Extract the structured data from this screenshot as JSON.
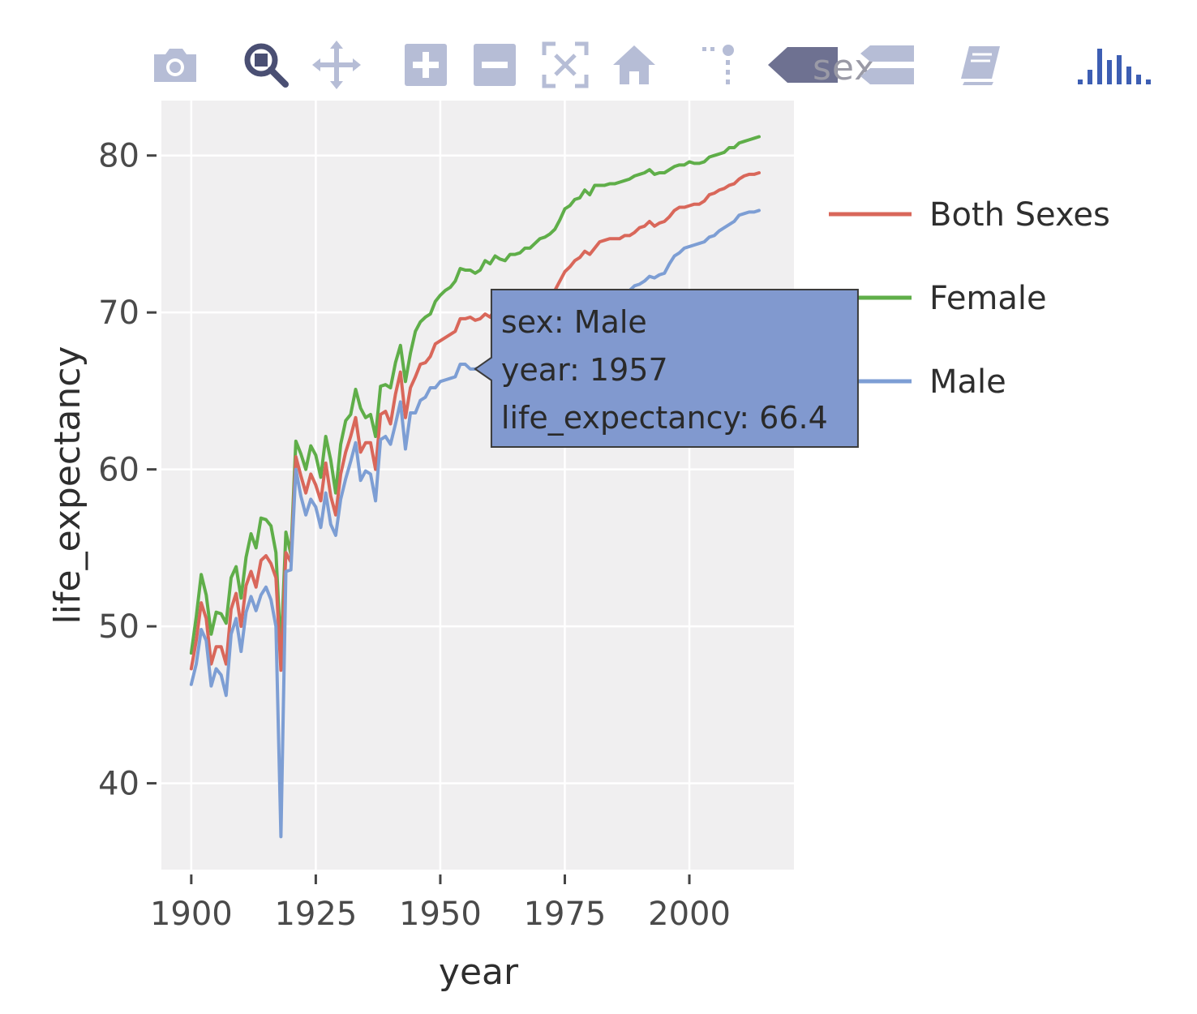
{
  "modebar": {
    "buttons": [
      {
        "name": "camera-icon",
        "title": "Download plot as a png"
      },
      {
        "name": "zoom-icon",
        "title": "Zoom"
      },
      {
        "name": "pan-icon",
        "title": "Pan"
      },
      {
        "name": "zoom-in-icon",
        "title": "Zoom in"
      },
      {
        "name": "zoom-out-icon",
        "title": "Zoom out"
      },
      {
        "name": "autoscale-icon",
        "title": "Autoscale"
      },
      {
        "name": "reset-axes-icon",
        "title": "Reset axes"
      },
      {
        "name": "spike-lines-icon",
        "title": "Toggle Spike Lines"
      },
      {
        "name": "hover-closest-icon",
        "title": "Show closest data on hover"
      },
      {
        "name": "hover-compare-icon",
        "title": "Compare data on hover"
      },
      {
        "name": "edit-icon",
        "title": "Edit in Chart Studio"
      },
      {
        "name": "plotly-logo-icon",
        "title": "Produced with Plotly"
      }
    ],
    "hover_label_text": "sex",
    "icon_color": "#b6bdd6",
    "active_icon_color": "#4a4f73",
    "logo_color": "#3d5eb3"
  },
  "chart_data": {
    "type": "line",
    "xlabel": "year",
    "ylabel": "life_expectancy",
    "xlim": [
      1894,
      2021
    ],
    "ylim": [
      34.5,
      83.5
    ],
    "x_ticks": [
      1900,
      1925,
      1950,
      1975,
      2000
    ],
    "y_ticks": [
      40,
      50,
      60,
      70,
      80
    ],
    "grid": true,
    "plot_background": "#f0eff0",
    "legend_placement": "right",
    "x_start": 1900,
    "series": [
      {
        "name": "Both Sexes",
        "color": "#d9675a",
        "values": [
          47.3,
          49.1,
          51.5,
          50.5,
          47.6,
          48.7,
          48.7,
          47.6,
          51.1,
          52.1,
          50.0,
          52.6,
          53.5,
          52.5,
          54.2,
          54.5,
          54.0,
          53.1,
          47.2,
          54.7,
          54.1,
          60.8,
          59.6,
          58.5,
          59.7,
          59.0,
          58.0,
          60.4,
          58.3,
          57.1,
          59.7,
          61.1,
          62.1,
          63.3,
          61.1,
          61.7,
          61.7,
          60.0,
          63.5,
          63.7,
          62.9,
          64.8,
          66.2,
          63.3,
          65.2,
          65.9,
          66.7,
          66.8,
          67.2,
          68.0,
          68.2,
          68.4,
          68.6,
          68.8,
          69.6,
          69.6,
          69.7,
          69.5,
          69.6,
          69.9,
          69.7,
          70.2,
          70.1,
          69.9,
          70.2,
          70.2,
          70.1,
          70.5,
          70.2,
          70.5,
          70.8,
          71.1,
          71.2,
          71.4,
          72.0,
          72.6,
          72.9,
          73.3,
          73.5,
          73.9,
          73.7,
          74.1,
          74.5,
          74.6,
          74.7,
          74.7,
          74.7,
          74.9,
          74.9,
          75.1,
          75.4,
          75.5,
          75.8,
          75.5,
          75.7,
          75.8,
          76.1,
          76.5,
          76.7,
          76.7,
          76.8,
          76.9,
          76.9,
          77.1,
          77.5,
          77.6,
          77.8,
          77.9,
          78.1,
          78.2,
          78.5,
          78.7,
          78.8,
          78.8,
          78.9
        ]
      },
      {
        "name": "Female",
        "color": "#5fae49",
        "values": [
          48.3,
          50.6,
          53.3,
          52.0,
          49.5,
          50.9,
          50.8,
          50.2,
          53.1,
          53.8,
          51.8,
          54.4,
          55.9,
          55.0,
          56.9,
          56.8,
          56.4,
          54.7,
          48.3,
          56.0,
          54.6,
          61.8,
          61.0,
          60.0,
          61.5,
          60.9,
          59.5,
          62.1,
          60.6,
          58.5,
          61.6,
          63.1,
          63.5,
          65.1,
          63.9,
          63.3,
          63.5,
          62.1,
          65.3,
          65.4,
          65.2,
          66.8,
          67.9,
          65.6,
          67.4,
          68.8,
          69.4,
          69.7,
          69.9,
          70.7,
          71.1,
          71.4,
          71.6,
          72.0,
          72.8,
          72.7,
          72.7,
          72.5,
          72.7,
          73.3,
          73.1,
          73.6,
          73.4,
          73.3,
          73.7,
          73.7,
          73.8,
          74.1,
          74.1,
          74.4,
          74.7,
          74.8,
          75.0,
          75.3,
          75.9,
          76.6,
          76.8,
          77.2,
          77.3,
          77.8,
          77.5,
          78.1,
          78.1,
          78.1,
          78.2,
          78.2,
          78.3,
          78.4,
          78.5,
          78.7,
          78.8,
          78.9,
          79.1,
          78.8,
          78.9,
          78.9,
          79.1,
          79.3,
          79.4,
          79.4,
          79.6,
          79.5,
          79.5,
          79.6,
          79.9,
          80.0,
          80.1,
          80.2,
          80.5,
          80.5,
          80.8,
          80.9,
          81.0,
          81.1,
          81.2
        ]
      },
      {
        "name": "Male",
        "color": "#7d9ed4",
        "values": [
          46.3,
          47.6,
          49.8,
          49.1,
          46.2,
          47.3,
          46.9,
          45.6,
          49.5,
          50.5,
          48.4,
          50.9,
          51.9,
          51.0,
          52.0,
          52.5,
          51.7,
          50.0,
          36.6,
          53.5,
          53.6,
          60.0,
          58.3,
          57.1,
          58.1,
          57.6,
          56.3,
          58.5,
          56.5,
          55.8,
          58.1,
          59.4,
          60.5,
          61.7,
          59.3,
          59.9,
          59.7,
          58.0,
          61.9,
          62.1,
          61.6,
          62.9,
          64.3,
          61.3,
          63.6,
          63.6,
          64.4,
          64.6,
          65.2,
          65.2,
          65.6,
          65.7,
          65.8,
          65.9,
          66.7,
          66.7,
          66.4,
          66.4,
          66.5,
          66.6,
          66.6,
          67.0,
          66.9,
          66.6,
          66.8,
          66.8,
          66.7,
          67.0,
          66.6,
          66.8,
          67.1,
          67.4,
          67.4,
          67.6,
          68.2,
          68.8,
          69.1,
          69.5,
          69.6,
          70.0,
          70.0,
          70.4,
          70.8,
          71.0,
          71.1,
          71.1,
          71.2,
          71.4,
          71.4,
          71.7,
          71.8,
          72.0,
          72.3,
          72.2,
          72.4,
          72.5,
          73.1,
          73.6,
          73.8,
          74.1,
          74.2,
          74.3,
          74.4,
          74.5,
          74.8,
          74.9,
          75.2,
          75.4,
          75.6,
          75.8,
          76.2,
          76.3,
          76.4,
          76.4,
          76.5
        ]
      }
    ],
    "tooltip": {
      "series": "Male",
      "x": 1957,
      "y": 66.4,
      "lines": [
        "sex: Male",
        "year: 1957",
        "life_expectancy: 66.4"
      ],
      "background": "#8199cf"
    }
  }
}
